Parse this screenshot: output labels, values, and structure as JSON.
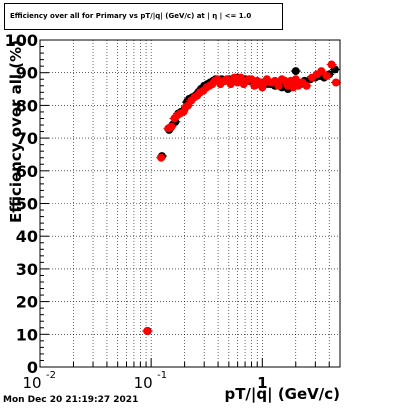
{
  "title": "Efficiency over all for Primary vs pT/|q| (GeV/c) at | η | <= 1.0",
  "timestamp": "Mon Dec 20 21:19:27 2021",
  "chart_data": {
    "type": "scatter",
    "title": "Efficiency over all for Primary vs pT/|q| (GeV/c) at | η | <= 1.0",
    "xlabel": "pT/|q| (GeV/c)",
    "ylabel": "Efficiency over all (%)",
    "xscale": "log",
    "xlim": [
      0.01,
      5.0
    ],
    "ylim": [
      0,
      100
    ],
    "grid": true,
    "x_tick_labels": [
      "10^-2",
      "10^-1",
      "1"
    ],
    "y_tick_labels": [
      "0",
      "10",
      "20",
      "30",
      "40",
      "50",
      "60",
      "70",
      "80",
      "90",
      "100"
    ],
    "series": [
      {
        "color": "#000000",
        "marker": "filled-circle",
        "x": [
          0.093,
          0.125,
          0.145,
          0.155,
          0.165,
          0.175,
          0.185,
          0.2,
          0.21,
          0.22,
          0.235,
          0.25,
          0.265,
          0.28,
          0.3,
          0.32,
          0.34,
          0.36,
          0.38,
          0.4,
          0.43,
          0.46,
          0.5,
          0.55,
          0.6,
          0.65,
          0.7,
          0.75,
          0.8,
          0.85,
          0.9,
          0.95,
          1.0,
          1.1,
          1.2,
          1.3,
          1.4,
          1.5,
          1.6,
          1.7,
          1.8,
          1.9,
          2.0,
          2.2,
          2.4,
          2.7,
          3.0,
          3.3,
          3.6,
          4.0,
          4.5
        ],
        "y": [
          11,
          64.5,
          72.5,
          74,
          75,
          77.5,
          78,
          79,
          81,
          82,
          82.5,
          83,
          84,
          85,
          86,
          86.5,
          87,
          87.5,
          88,
          87.5,
          88,
          87.5,
          88,
          87.5,
          88.5,
          88,
          88,
          87.5,
          87.5,
          87,
          87,
          86.5,
          87,
          86.5,
          86.5,
          86,
          86.5,
          85.5,
          86,
          85,
          85.5,
          86,
          90.5,
          86.5,
          87.5,
          88,
          88.5,
          89,
          88.5,
          89.5,
          91
        ]
      },
      {
        "color": "#ff0000",
        "marker": "filled-circle",
        "x": [
          0.092,
          0.123,
          0.143,
          0.152,
          0.162,
          0.172,
          0.182,
          0.195,
          0.205,
          0.215,
          0.23,
          0.245,
          0.26,
          0.275,
          0.295,
          0.315,
          0.335,
          0.355,
          0.375,
          0.395,
          0.42,
          0.45,
          0.48,
          0.52,
          0.56,
          0.6,
          0.64,
          0.68,
          0.72,
          0.76,
          0.8,
          0.85,
          0.9,
          0.95,
          1.0,
          1.05,
          1.1,
          1.2,
          1.3,
          1.4,
          1.5,
          1.6,
          1.7,
          1.8,
          1.9,
          2.0,
          2.1,
          2.3,
          2.5,
          2.8,
          3.1,
          3.4,
          3.8,
          4.2,
          4.6
        ],
        "y": [
          11,
          64,
          73,
          73.5,
          76,
          77,
          77.5,
          78,
          79.5,
          80,
          81.5,
          82.5,
          83,
          84,
          84.5,
          85.5,
          86,
          86.5,
          87.5,
          88,
          86.5,
          87.5,
          88,
          86.5,
          88.5,
          87,
          88.5,
          86.5,
          87.5,
          88,
          88,
          86,
          87.5,
          87,
          85.5,
          87,
          88,
          87,
          87.5,
          86,
          88,
          87.5,
          86,
          87.5,
          85.5,
          88,
          86,
          87,
          86,
          88.5,
          89.5,
          90.5,
          89,
          92.5,
          87
        ]
      }
    ]
  }
}
